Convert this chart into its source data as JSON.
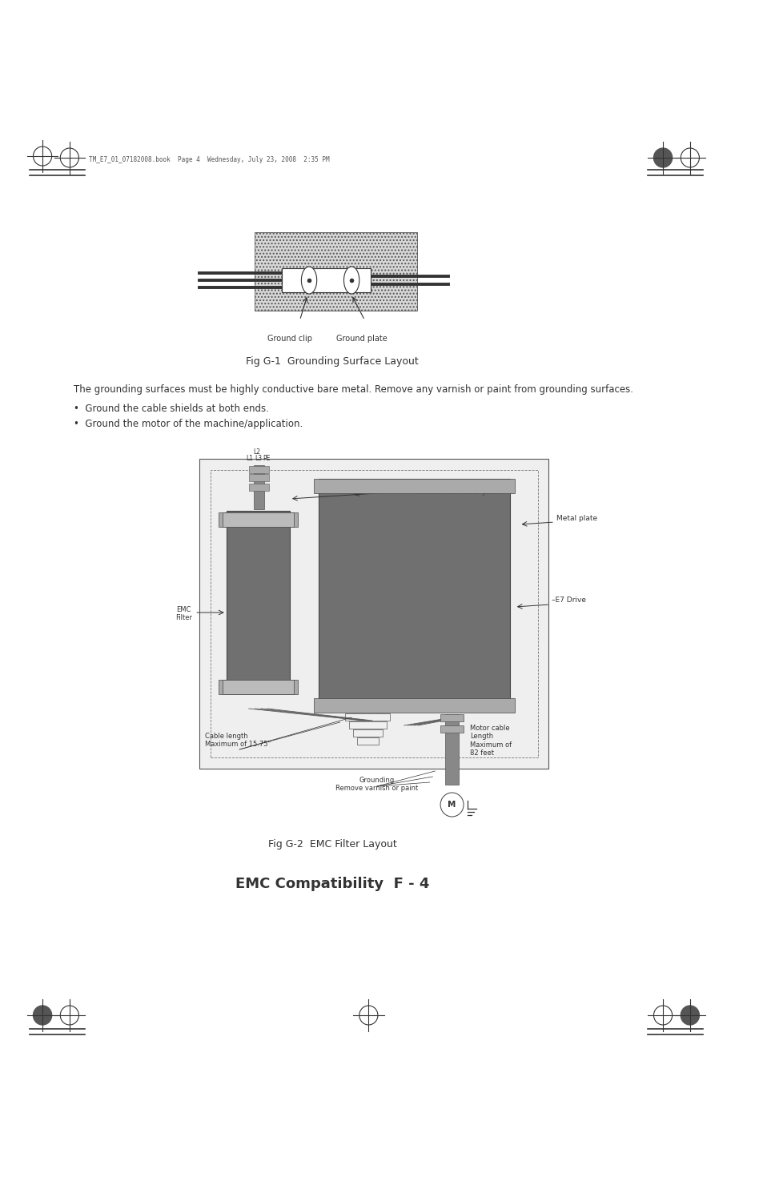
{
  "page_header_text": "TM_E7_01_07182008.book  Page 4  Wednesday, July 23, 2008  2:35 PM",
  "fig1_caption": "Fig G-1  Grounding Surface Layout",
  "fig2_caption": "Fig G-2  EMC Filter Layout",
  "page_footer": "EMC Compatibility  F - 4",
  "body_text_line1": "The grounding surfaces must be highly conductive bare metal. Remove any varnish or paint from grounding surfaces.",
  "body_bullet1": "•  Ground the cable shields at both ends.",
  "body_bullet2": "•  Ground the motor of the machine/application.",
  "label_ground_clip": "Ground clip",
  "label_ground_plate": "Ground plate",
  "label_L1": "L1",
  "label_L2": "L2",
  "label_L3": "L3",
  "label_PE": "PE",
  "label_grounding_top": "Grounding\nRemove varnish or paint",
  "label_metal_plate": "Metal plate",
  "label_e7_drive": "–E7 Drive",
  "label_emc_filter": "EMC\nFilter",
  "label_cable_length": "Cable length\nMaximum of 15.75\"",
  "label_motor_cable": "Motor cable\nLength\nMaximum of\n82 feet",
  "label_grounding_bottom": "Grounding\nRemove varnish or paint",
  "label_M": "M",
  "bg_color": "#ffffff",
  "gray_dark": "#707070",
  "gray_medium": "#888888",
  "gray_light": "#cccccc",
  "text_color": "#000000"
}
